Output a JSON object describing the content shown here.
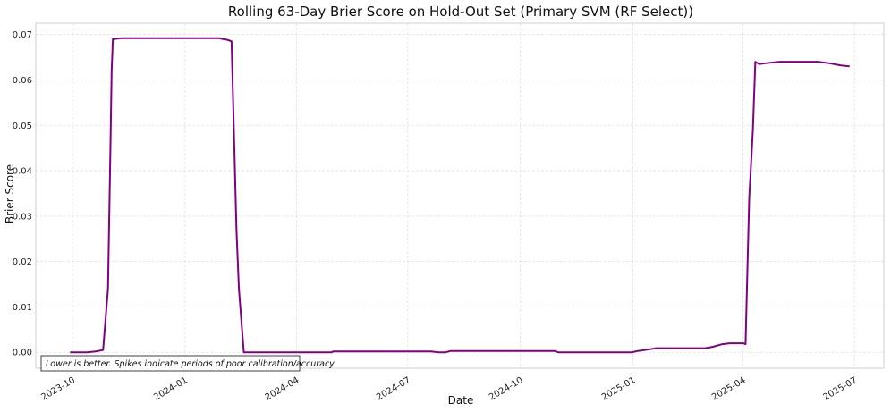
{
  "chart_data": {
    "type": "line",
    "title": "Rolling 63-Day Brier Score on Hold-Out Set (Primary SVM (RF Select))",
    "xlabel": "Date",
    "ylabel": "Brier Score",
    "x_axis_type": "date",
    "xlim": [
      "2023-09-01",
      "2025-07-25"
    ],
    "ylim": [
      -0.0035,
      0.0725
    ],
    "x_ticks": [
      "2023-10",
      "2024-01",
      "2024-04",
      "2024-07",
      "2024-10",
      "2025-01",
      "2025-04",
      "2025-07"
    ],
    "y_ticks": [
      0.0,
      0.01,
      0.02,
      0.03,
      0.04,
      0.05,
      0.06,
      0.07
    ],
    "y_tick_labels": [
      "0.00",
      "0.01",
      "0.02",
      "0.03",
      "0.04",
      "0.05",
      "0.06",
      "0.07"
    ],
    "grid": true,
    "legend": "none",
    "annotation": "Lower is better. Spikes indicate periods of poor calibration/accuracy.",
    "line_color": "#800080",
    "series": [
      {
        "x": [
          "2023-09-29",
          "2023-10-06",
          "2023-10-13",
          "2023-10-20",
          "2023-10-26",
          "2023-10-30",
          "2023-11-01",
          "2023-11-02",
          "2023-11-03",
          "2023-11-10",
          "2023-11-20",
          "2023-12-01",
          "2023-12-15",
          "2024-01-01",
          "2024-01-15",
          "2024-01-29",
          "2024-02-01",
          "2024-02-05",
          "2024-02-08",
          "2024-02-12",
          "2024-02-14",
          "2024-02-18",
          "2024-02-22",
          "2024-03-01",
          "2024-03-15",
          "2024-04-01",
          "2024-04-15",
          "2024-04-30",
          "2024-05-01",
          "2024-06-01",
          "2024-07-01",
          "2024-07-20",
          "2024-07-26",
          "2024-08-01",
          "2024-08-05",
          "2024-09-01",
          "2024-10-01",
          "2024-10-29",
          "2024-11-01",
          "2024-12-01",
          "2024-12-31",
          "2025-01-05",
          "2025-01-13",
          "2025-01-20",
          "2025-02-01",
          "2025-03-01",
          "2025-03-07",
          "2025-03-15",
          "2025-03-21",
          "2025-04-01",
          "2025-04-03",
          "2025-04-06",
          "2025-04-09",
          "2025-04-11",
          "2025-04-14",
          "2025-04-20",
          "2025-05-01",
          "2025-06-01",
          "2025-06-10",
          "2025-06-20",
          "2025-06-27"
        ],
        "y": [
          0.0,
          0.0,
          0.0,
          0.0002,
          0.0005,
          0.014,
          0.045,
          0.062,
          0.069,
          0.0692,
          0.0692,
          0.0692,
          0.0692,
          0.0692,
          0.0692,
          0.0692,
          0.069,
          0.0688,
          0.0685,
          0.027,
          0.014,
          0.0,
          0.0,
          0.0,
          0.0,
          0.0,
          0.0,
          0.0,
          0.0002,
          0.0002,
          0.0002,
          0.0002,
          0.0,
          0.0,
          0.0003,
          0.0003,
          0.0003,
          0.0003,
          0.0,
          0.0,
          0.0,
          0.0003,
          0.0006,
          0.0009,
          0.0009,
          0.0009,
          0.0012,
          0.0018,
          0.002,
          0.002,
          0.0018,
          0.034,
          0.049,
          0.064,
          0.0635,
          0.0637,
          0.064,
          0.064,
          0.0637,
          0.0632,
          0.063
        ]
      }
    ]
  }
}
